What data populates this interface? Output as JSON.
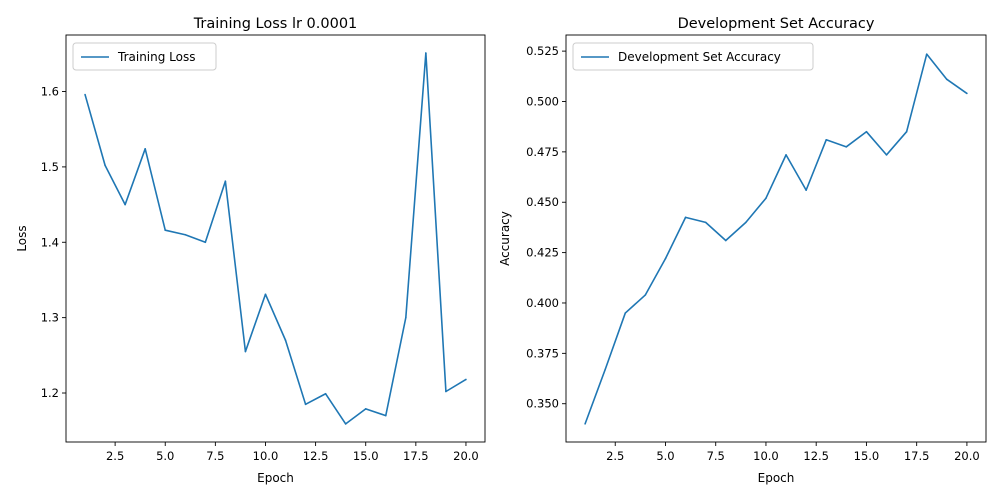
{
  "chart_data": [
    {
      "type": "line",
      "title": "Training Loss lr 0.0001",
      "xlabel": "Epoch",
      "ylabel": "Loss",
      "xlim": [
        0.05,
        20.95
      ],
      "ylim": [
        1.135,
        1.675
      ],
      "xticks": [
        2.5,
        5.0,
        7.5,
        10.0,
        12.5,
        15.0,
        17.5,
        20.0
      ],
      "xtick_labels": [
        "2.5",
        "5.0",
        "7.5",
        "10.0",
        "12.5",
        "15.0",
        "17.5",
        "20.0"
      ],
      "yticks": [
        1.2,
        1.3,
        1.4,
        1.5,
        1.6
      ],
      "ytick_labels": [
        "1.2",
        "1.3",
        "1.4",
        "1.5",
        "1.6"
      ],
      "legend_position": "upper-left",
      "grid": false,
      "color": "#1f77b4",
      "series": [
        {
          "name": "Training Loss",
          "x": [
            1,
            2,
            3,
            4,
            5,
            6,
            7,
            8,
            9,
            10,
            11,
            12,
            13,
            14,
            15,
            16,
            17,
            18,
            19,
            20
          ],
          "values": [
            1.596,
            1.502,
            1.45,
            1.524,
            1.416,
            1.41,
            1.4,
            1.481,
            1.255,
            1.331,
            1.27,
            1.185,
            1.199,
            1.159,
            1.179,
            1.17,
            1.3,
            1.651,
            1.202,
            1.218
          ]
        }
      ]
    },
    {
      "type": "line",
      "title": "Development Set Accuracy",
      "xlabel": "Epoch",
      "ylabel": "Accuracy",
      "xlim": [
        0.05,
        20.95
      ],
      "ylim": [
        0.331,
        0.533
      ],
      "xticks": [
        2.5,
        5.0,
        7.5,
        10.0,
        12.5,
        15.0,
        17.5,
        20.0
      ],
      "xtick_labels": [
        "2.5",
        "5.0",
        "7.5",
        "10.0",
        "12.5",
        "15.0",
        "17.5",
        "20.0"
      ],
      "yticks": [
        0.35,
        0.375,
        0.4,
        0.425,
        0.45,
        0.475,
        0.5,
        0.525
      ],
      "ytick_labels": [
        "0.350",
        "0.375",
        "0.400",
        "0.425",
        "0.450",
        "0.475",
        "0.500",
        "0.525"
      ],
      "legend_position": "upper-left",
      "grid": false,
      "color": "#1f77b4",
      "series": [
        {
          "name": "Development Set Accuracy",
          "x": [
            1,
            2,
            3,
            4,
            5,
            6,
            7,
            8,
            9,
            10,
            11,
            12,
            13,
            14,
            15,
            16,
            17,
            18,
            19,
            20
          ],
          "values": [
            0.34,
            0.367,
            0.395,
            0.404,
            0.422,
            0.4425,
            0.44,
            0.431,
            0.44,
            0.452,
            0.4735,
            0.456,
            0.481,
            0.4775,
            0.485,
            0.4735,
            0.485,
            0.5235,
            0.511,
            0.504
          ]
        }
      ]
    }
  ]
}
